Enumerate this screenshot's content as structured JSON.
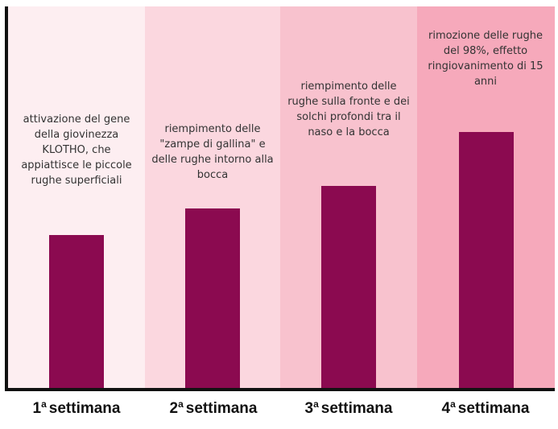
{
  "colors": {
    "bar": "#8b0a50",
    "backgrounds": [
      "#fdeef1",
      "#fbd7df",
      "#f8c2ce",
      "#f6a9bb"
    ]
  },
  "chart_data": {
    "type": "bar",
    "title": "",
    "xlabel": "",
    "ylabel": "",
    "ylim": [
      0,
      100
    ],
    "categories": [
      {
        "num": "1",
        "sup": "a",
        "text": "settimana"
      },
      {
        "num": "2",
        "sup": "a",
        "text": "settimana"
      },
      {
        "num": "3",
        "sup": "a",
        "text": "settimana"
      },
      {
        "num": "4",
        "sup": "a",
        "text": "settimana"
      }
    ],
    "values": [
      40,
      47,
      53,
      67
    ],
    "annotations": [
      "attivazione del gene della giovinezza KLOTHO, che appiattisce le piccole rughe superficiali",
      "riempimento delle \"zampe di gallina\" e delle rughe intorno alla bocca",
      "riempimento delle rughe sulla fronte e dei solchi profondi tra il naso e la bocca",
      "rimozione delle rughe del 98%, effetto ringiovanimento di 15 anni"
    ]
  }
}
